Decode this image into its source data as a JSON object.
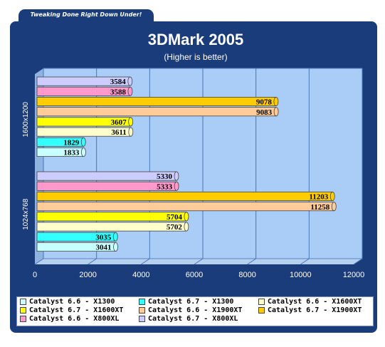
{
  "banner": {
    "text": "Tweaking Done Right Down Under!"
  },
  "chart_data": {
    "type": "bar",
    "orientation": "horizontal",
    "title": "3DMark 2005",
    "subtitle": "(Higher is better)",
    "categories": [
      "1600x1200",
      "1024x768"
    ],
    "xlim": [
      0,
      12000
    ],
    "xticks": [
      0,
      2000,
      4000,
      6000,
      8000,
      10000,
      12000
    ],
    "grid": true,
    "legend_position": "bottom",
    "series": [
      {
        "name": "Catalyst 6.6 - X1300",
        "color": "#c8ffff",
        "values": [
          1833,
          3041
        ]
      },
      {
        "name": "Catalyst 6.7 - X1300",
        "color": "#33ffff",
        "values": [
          1829,
          3035
        ]
      },
      {
        "name": "Catalyst 6.6 - X1600XT",
        "color": "#ffffcc",
        "values": [
          3611,
          5702
        ]
      },
      {
        "name": "Catalyst 6.7 - X1600XT",
        "color": "#ffff00",
        "values": [
          3607,
          5704
        ]
      },
      {
        "name": "Catalyst 6.6 - X1900XT",
        "color": "#ffcc99",
        "values": [
          9083,
          11258
        ]
      },
      {
        "name": "Catalyst 6.7 - X1900XT",
        "color": "#ffcc00",
        "values": [
          9078,
          11203
        ]
      },
      {
        "name": "Catalyst 6.6 - X800XL",
        "color": "#ff99cc",
        "values": [
          3588,
          5333
        ]
      },
      {
        "name": "Catalyst 6.7 - X800XL",
        "color": "#ccccff",
        "values": [
          3584,
          5330
        ]
      }
    ]
  }
}
